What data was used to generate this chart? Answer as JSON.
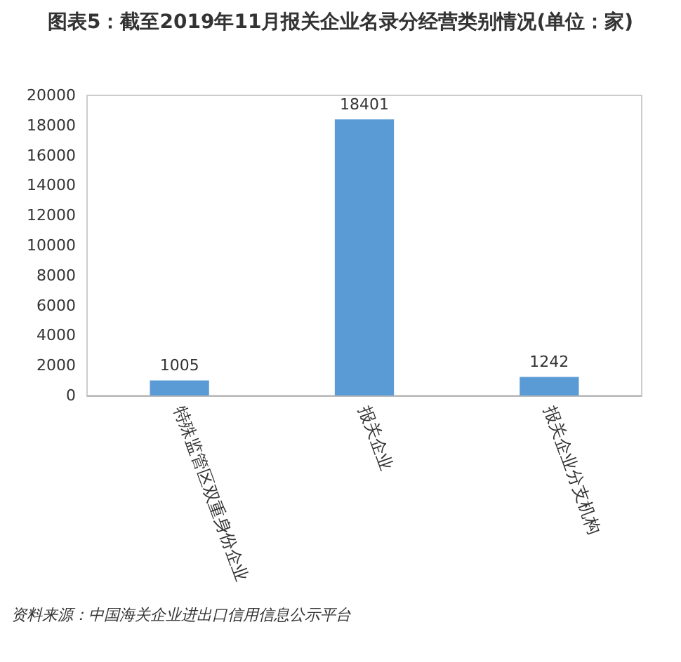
{
  "chart_data": {
    "type": "bar",
    "title": "图表5：截至2019年11月报关企业名录分经营类别情况(单位：家)",
    "categories": [
      "特殊监管区双重身份企业",
      "报关企业",
      "报关企业分支机构"
    ],
    "values": [
      1005,
      18401,
      1242
    ],
    "color": "#5b9bd5",
    "data_labels": true,
    "ylim": [
      0,
      20000
    ],
    "yticks": [
      0,
      2000,
      4000,
      6000,
      8000,
      10000,
      12000,
      14000,
      16000,
      18000,
      20000
    ],
    "grid": false,
    "annotations": [
      "资料来源：中国海关企业进出口信用信息公示平台"
    ]
  }
}
